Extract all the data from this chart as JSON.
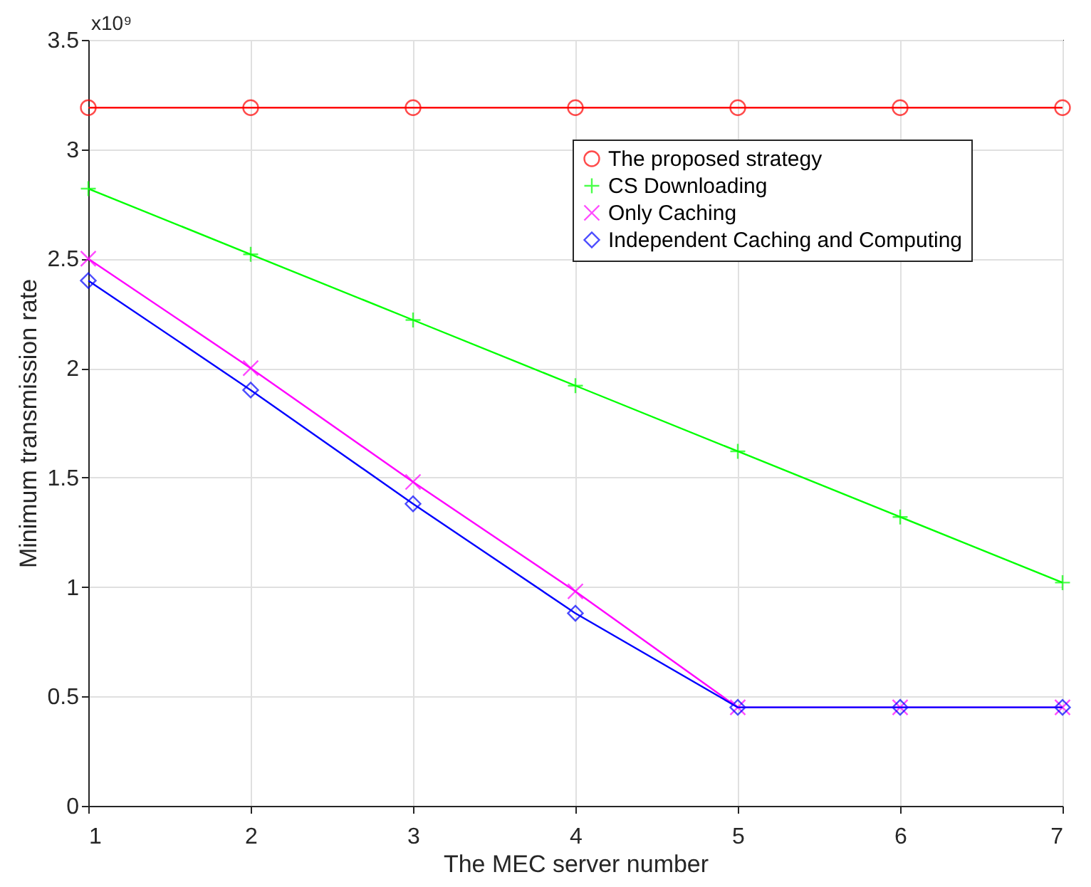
{
  "chart_data": {
    "type": "line",
    "xlabel": "The MEC server number",
    "ylabel": "Minimum transmission rate",
    "annotations": [
      "x10⁹"
    ],
    "x": [
      1,
      2,
      3,
      4,
      5,
      6,
      7
    ],
    "xlim": [
      1,
      7
    ],
    "xticks": [
      1,
      2,
      3,
      4,
      5,
      6,
      7
    ],
    "ylim": [
      0,
      3.5
    ],
    "yticks": [
      0,
      0.5,
      1,
      1.5,
      2,
      2.5,
      3,
      3.5
    ],
    "grid": true,
    "legend": "top right",
    "line_style": "solid",
    "series": [
      {
        "name": "The proposed strategy",
        "color": "#ff0000",
        "marker": "circle",
        "values": [
          3.19,
          3.19,
          3.19,
          3.19,
          3.19,
          3.19,
          3.19
        ]
      },
      {
        "name": "CS Downloading",
        "color": "#00ff00",
        "marker": "plus",
        "values": [
          2.82,
          2.52,
          2.22,
          1.92,
          1.62,
          1.32,
          1.02
        ]
      },
      {
        "name": "Only Caching",
        "color": "#ff00ff",
        "marker": "cross",
        "values": [
          2.5,
          2.0,
          1.48,
          0.98,
          0.45,
          0.45,
          0.45
        ]
      },
      {
        "name": "Independent Caching and Computing",
        "color": "#0000ff",
        "marker": "diamond",
        "values": [
          2.4,
          1.9,
          1.38,
          0.88,
          0.45,
          0.45,
          0.45
        ]
      }
    ]
  }
}
